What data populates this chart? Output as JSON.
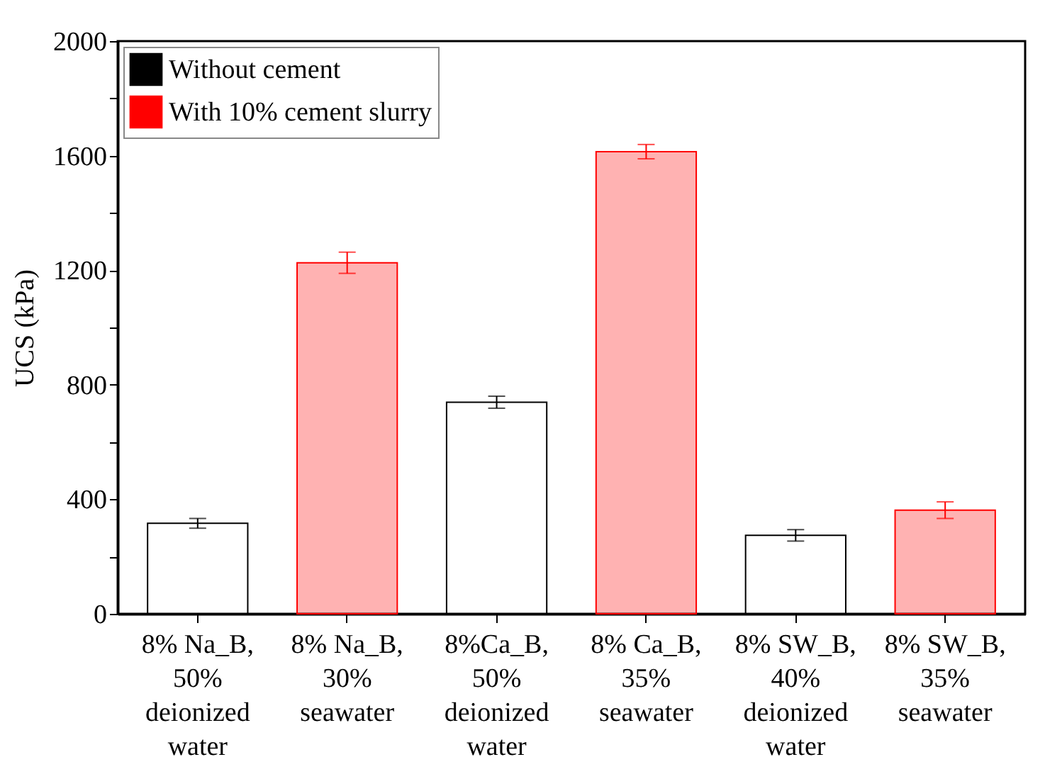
{
  "chart_data": {
    "type": "bar",
    "ylabel": "UCS (kPa)",
    "categories": [
      "8% Na_B, 50% deionized water",
      "8% Na_B, 30% seawater",
      "8%Ca_B, 50% deionized water",
      "8% Ca_B, 35% seawater",
      "8% SW_B, 40% deionized water",
      "8% SW_B, 35% seawater"
    ],
    "series": [
      {
        "name": "Without cement",
        "color": "#000000",
        "values": [
          316,
          null,
          739,
          null,
          274,
          null
        ],
        "errors": [
          17,
          null,
          21,
          null,
          20,
          null
        ]
      },
      {
        "name": "With 10% cement slurry",
        "color": "#ff0000",
        "values": [
          null,
          1226,
          null,
          1614,
          null,
          362
        ],
        "errors": [
          null,
          37,
          null,
          25,
          null,
          29
        ]
      }
    ],
    "ylim": [
      0,
      2000
    ],
    "yticks": [
      0,
      {
        "value": 200,
        "label": null
      },
      400,
      {
        "value": 600,
        "label": null
      },
      800,
      {
        "value": 1000,
        "label": null
      },
      1200,
      {
        "value": 1400,
        "label": null
      },
      1600,
      {
        "value": 1800,
        "label": null
      },
      2000
    ],
    "legend": "top left",
    "grid": false
  }
}
